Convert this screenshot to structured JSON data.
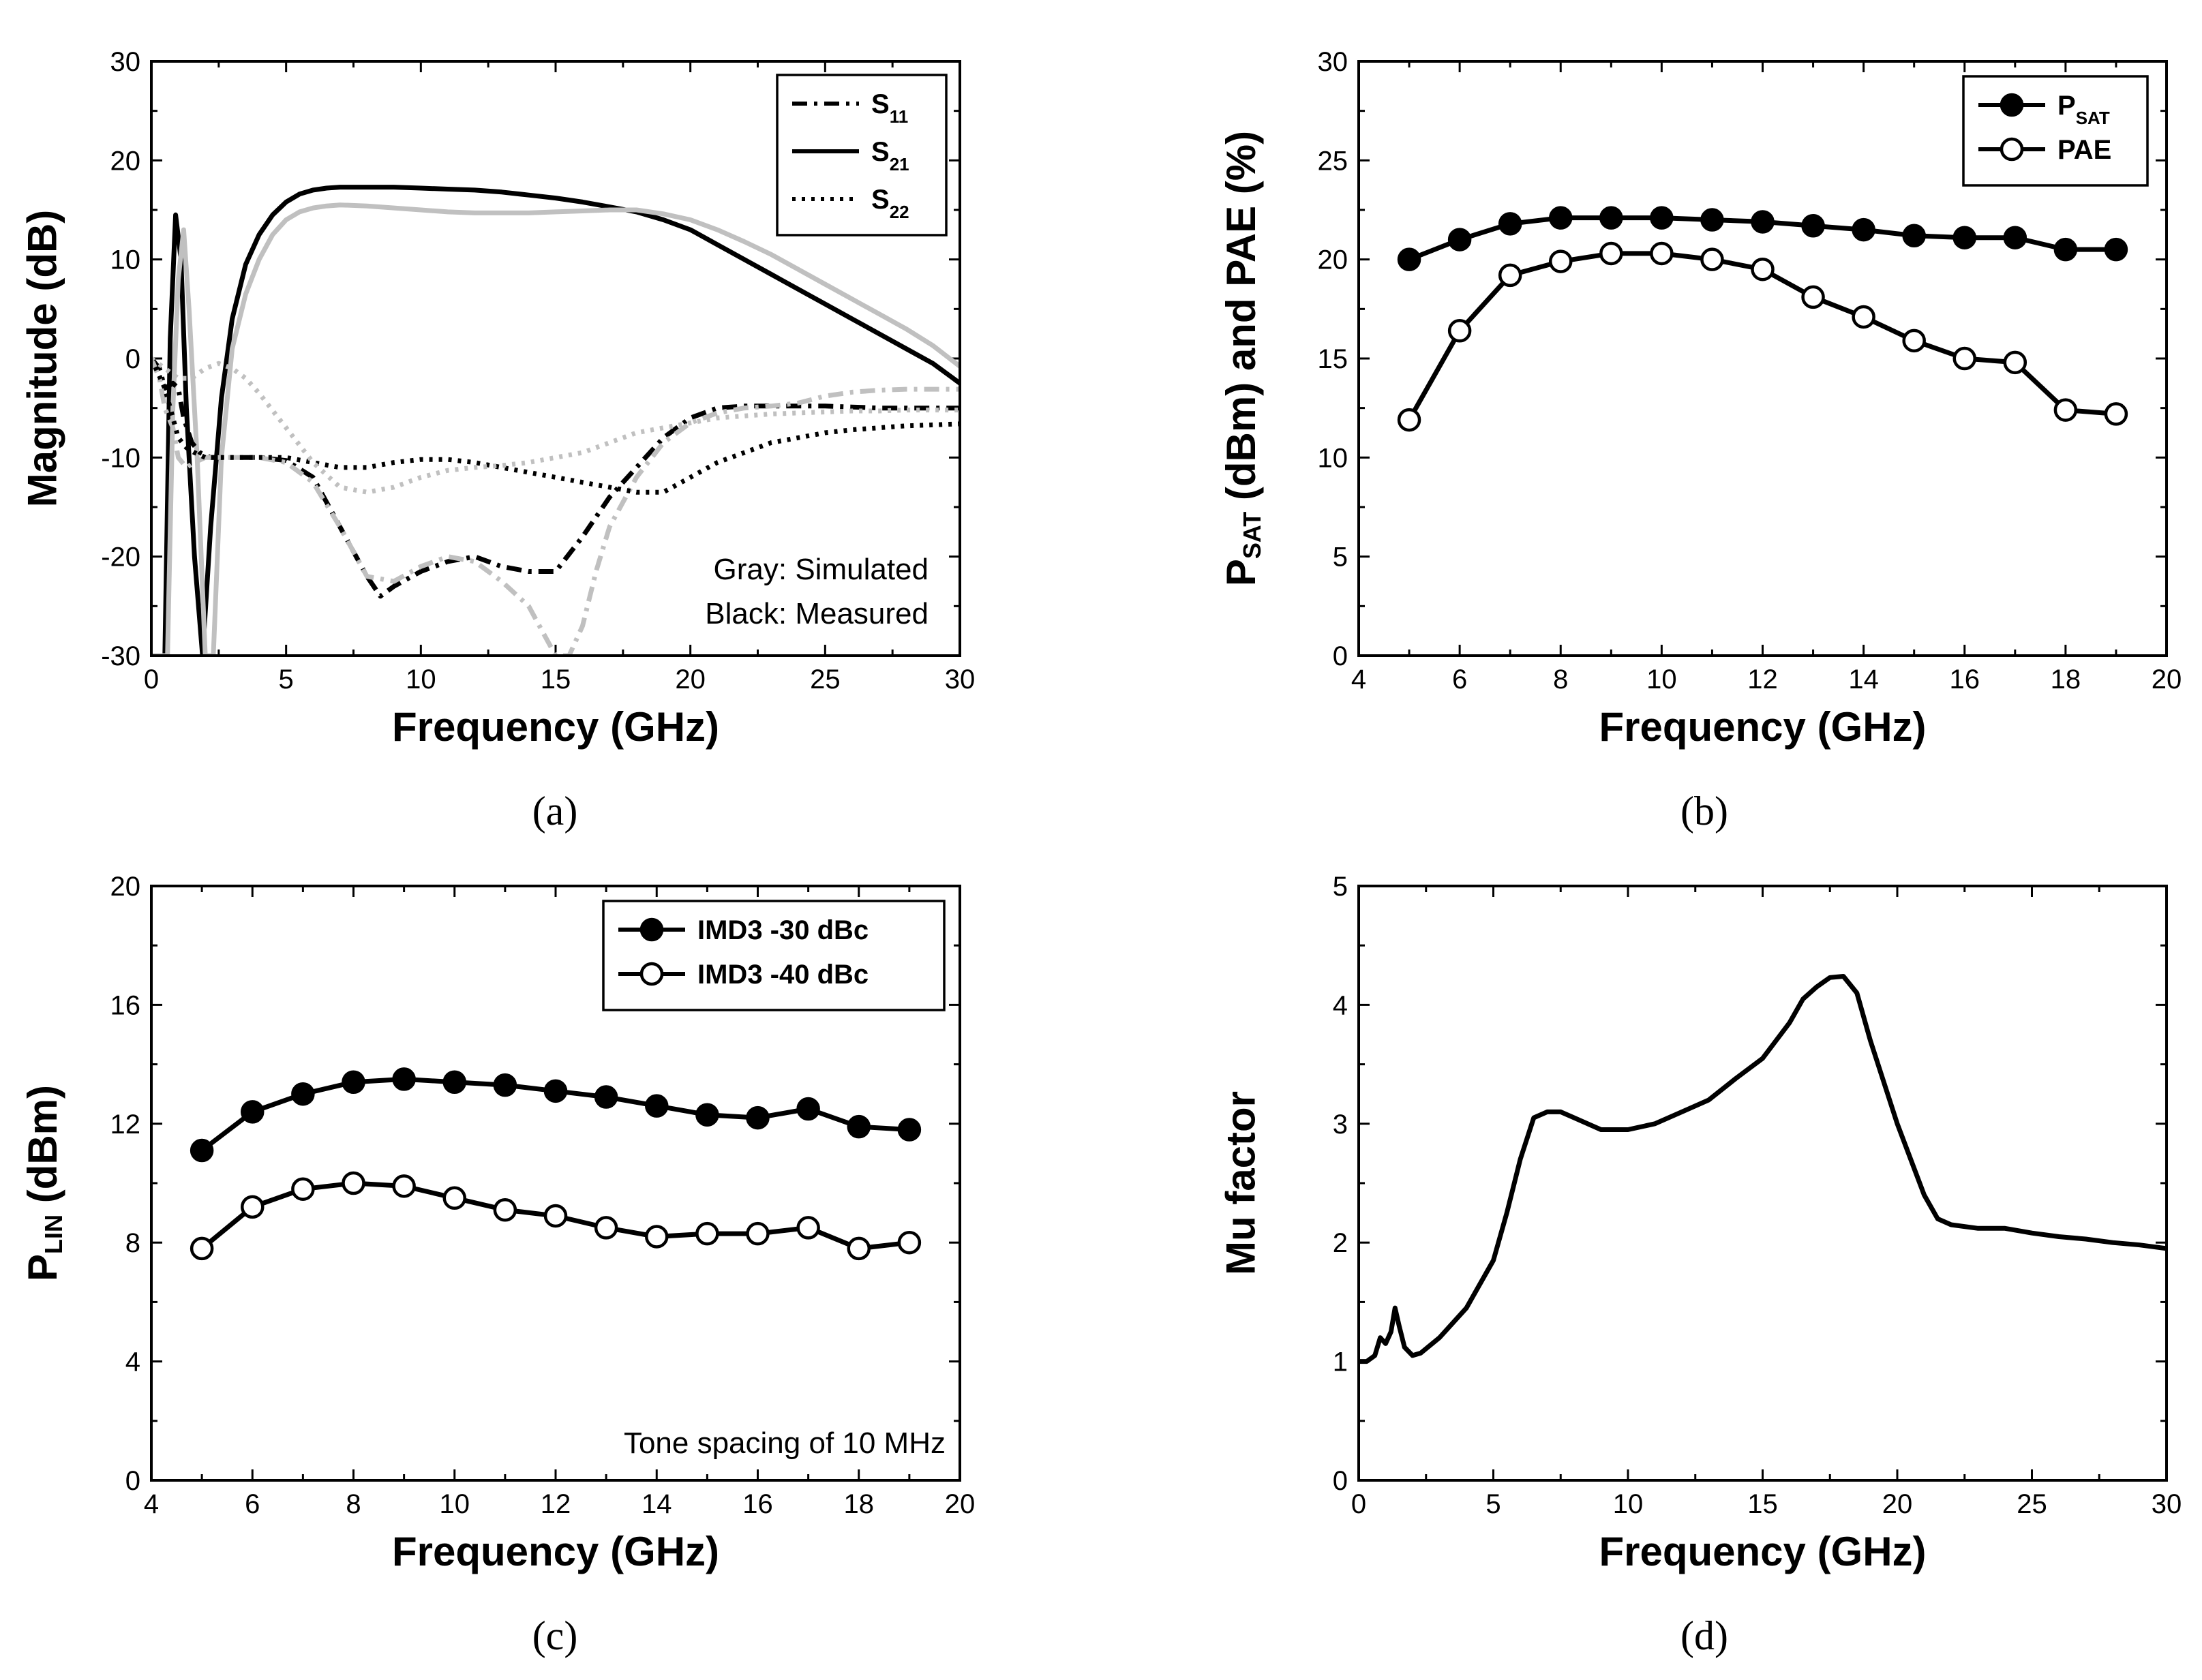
{
  "panels": [
    {
      "caption": "(a)",
      "chart_data": {
        "type": "line",
        "xlabel": "Frequency (GHz)",
        "ylabel": "Magnitude (dB)",
        "xlim": [
          0,
          30
        ],
        "ylim": [
          -30,
          30
        ],
        "xticks": [
          0,
          5,
          10,
          15,
          20,
          25,
          30
        ],
        "yticks": [
          -30,
          -20,
          -10,
          0,
          10,
          20,
          30
        ],
        "grid": false,
        "legend_placement": "top-right",
        "legend": [
          {
            "base": "S",
            "sub": "11",
            "style": "dashdot"
          },
          {
            "base": "S",
            "sub": "21",
            "style": "solid"
          },
          {
            "base": "S",
            "sub": "22",
            "style": "dotted"
          }
        ],
        "annotations": [
          "Gray: Simulated",
          "Black: Measured"
        ],
        "series": [
          {
            "param": "S21",
            "source": "measured",
            "color": "#000000",
            "dash": "solid",
            "x": [
              0,
              0.3,
              0.5,
              0.7,
              0.9,
              1.1,
              1.3,
              1.6,
              1.9,
              2.2,
              2.6,
              3.0,
              3.5,
              4.0,
              4.5,
              5.0,
              5.5,
              6.0,
              6.5,
              7.0,
              8,
              9,
              10,
              11,
              12,
              13,
              14,
              15,
              16,
              17,
              18,
              19,
              20,
              21,
              22,
              23,
              24,
              25,
              26,
              27,
              28,
              29,
              30
            ],
            "y": [
              -30,
              -30,
              -30,
              2,
              14.5,
              10,
              -5,
              -20,
              -30,
              -17,
              -4,
              4,
              9.5,
              12.5,
              14.5,
              15.8,
              16.6,
              17.0,
              17.2,
              17.3,
              17.3,
              17.3,
              17.2,
              17.1,
              17.0,
              16.8,
              16.5,
              16.2,
              15.8,
              15.3,
              14.8,
              14.0,
              13.0,
              11.5,
              10.0,
              8.5,
              7.0,
              5.5,
              4.0,
              2.5,
              1.0,
              -0.5,
              -2.5
            ]
          },
          {
            "param": "S21",
            "source": "simulated",
            "color": "#c0c0c0",
            "dash": "solid",
            "x": [
              0,
              0.3,
              0.6,
              0.8,
              1.0,
              1.2,
              1.4,
              1.7,
              2.0,
              2.3,
              2.6,
              3.0,
              3.5,
              4.0,
              4.5,
              5.0,
              5.5,
              6.0,
              6.5,
              7.0,
              8,
              9,
              10,
              11,
              12,
              13,
              14,
              15,
              16,
              17,
              18,
              19,
              20,
              21,
              22,
              23,
              24,
              25,
              26,
              27,
              28,
              29,
              30
            ],
            "y": [
              -30,
              -30,
              -30,
              -5,
              8,
              13,
              5,
              -10,
              -30,
              -30,
              -10,
              1,
              6.5,
              10,
              12.5,
              14,
              14.8,
              15.2,
              15.4,
              15.5,
              15.4,
              15.2,
              15.0,
              14.8,
              14.7,
              14.7,
              14.7,
              14.8,
              14.9,
              15.0,
              15.0,
              14.6,
              14.0,
              13.0,
              11.8,
              10.5,
              9.0,
              7.5,
              6.0,
              4.5,
              3.0,
              1.3,
              -0.8
            ]
          },
          {
            "param": "S11",
            "source": "measured",
            "color": "#000000",
            "dash": "dashdot",
            "x": [
              0,
              0.3,
              0.5,
              0.8,
              1.0,
              1.2,
              1.5,
              1.8,
              2.2,
              3,
              4,
              5,
              6,
              7,
              8,
              8.5,
              9,
              10,
              11,
              12,
              13,
              14,
              15,
              16,
              17,
              18,
              19,
              20,
              21,
              22,
              23,
              24,
              25,
              26,
              27,
              28,
              29,
              30
            ],
            "y": [
              0,
              -1,
              -3,
              -2.5,
              -3,
              -6,
              -8.5,
              -9.5,
              -10,
              -10,
              -10,
              -10.3,
              -12,
              -17,
              -22,
              -24,
              -23,
              -21.5,
              -20.5,
              -20,
              -21,
              -21.5,
              -21.5,
              -18,
              -14,
              -11,
              -8,
              -6,
              -5,
              -4.8,
              -4.8,
              -4.8,
              -4.8,
              -4.9,
              -5,
              -5,
              -5,
              -5
            ]
          },
          {
            "param": "S11",
            "source": "simulated",
            "color": "#c0c0c0",
            "dash": "dashdot",
            "x": [
              0,
              0.3,
              0.5,
              0.8,
              1.0,
              1.3,
              1.6,
              2.0,
              3,
              4,
              5,
              6,
              7,
              8,
              9,
              10,
              11,
              12,
              13,
              14,
              14.5,
              15,
              15.5,
              16,
              16.5,
              17,
              18,
              19,
              20,
              21,
              22,
              23,
              24,
              25,
              26,
              27,
              28,
              29,
              30
            ],
            "y": [
              0,
              -2,
              -5,
              -7,
              -10,
              -11,
              -10.5,
              -10,
              -10,
              -10,
              -10.5,
              -12.5,
              -17,
              -22,
              -22.5,
              -21,
              -20,
              -20.5,
              -22.5,
              -25,
              -27.5,
              -30,
              -30,
              -27,
              -21.5,
              -17,
              -12,
              -8.5,
              -6.5,
              -5.5,
              -5,
              -4.8,
              -4.5,
              -3.8,
              -3.4,
              -3.2,
              -3.1,
              -3.1,
              -3.1
            ]
          },
          {
            "param": "S22",
            "source": "measured",
            "color": "#000000",
            "dash": "dotted",
            "x": [
              0,
              0.5,
              0.8,
              1.0,
              1.3,
              1.6,
              2.0,
              2.5,
              3,
              4,
              5,
              6,
              7,
              8,
              9,
              10,
              11,
              12,
              13,
              14,
              15,
              16,
              17,
              18,
              19,
              20,
              21,
              22,
              23,
              24,
              25,
              26,
              27,
              28,
              29,
              30
            ],
            "y": [
              0,
              -3,
              -6,
              -8,
              -9,
              -9.5,
              -10,
              -10,
              -10,
              -10,
              -10,
              -10.5,
              -11,
              -11,
              -10.5,
              -10.2,
              -10.2,
              -10.5,
              -11,
              -11.5,
              -12,
              -12.5,
              -13,
              -13.5,
              -13.5,
              -12,
              -10.5,
              -9.5,
              -8.5,
              -8,
              -7.5,
              -7.2,
              -7,
              -6.8,
              -6.7,
              -6.6
            ]
          },
          {
            "param": "S22",
            "source": "simulated",
            "color": "#c0c0c0",
            "dash": "dotted",
            "x": [
              0,
              0.5,
              1.0,
              1.5,
              2.0,
              2.5,
              3.0,
              3.5,
              4,
              5,
              6,
              7,
              8,
              9,
              10,
              11,
              12,
              13,
              14,
              15,
              16,
              17,
              18,
              19,
              20,
              21,
              22,
              23,
              24,
              25,
              26,
              27,
              28,
              29,
              30
            ],
            "y": [
              0,
              -1,
              -2,
              -2,
              -1,
              -0.5,
              -1,
              -2,
              -3.5,
              -7,
              -10.5,
              -13,
              -13.5,
              -13,
              -12,
              -11.3,
              -11,
              -10.8,
              -10.5,
              -10,
              -9.5,
              -8.5,
              -7.5,
              -7,
              -6.5,
              -6,
              -5.8,
              -5.6,
              -5.5,
              -5.4,
              -5.3,
              -5.3,
              -5.2,
              -5.2,
              -5.2
            ]
          }
        ]
      }
    },
    {
      "caption": "(b)",
      "chart_data": {
        "type": "line",
        "xlabel": "Frequency (GHz)",
        "ylabel": {
          "parts": [
            {
              "t": "P"
            },
            {
              "t": "SAT",
              "sub": true
            },
            {
              "t": " (dBm) and PAE (%)"
            }
          ]
        },
        "xlim": [
          4,
          20
        ],
        "ylim": [
          0,
          30
        ],
        "xticks": [
          4,
          6,
          8,
          10,
          12,
          14,
          16,
          18,
          20
        ],
        "yticks": [
          0,
          5,
          10,
          15,
          20,
          25,
          30
        ],
        "grid": false,
        "legend_placement": "top-right",
        "legend": [
          {
            "base": "P",
            "sub": "SAT",
            "marker": "filled"
          },
          {
            "base": "PAE",
            "sub": "",
            "marker": "open"
          }
        ],
        "annotations": [],
        "series": [
          {
            "name": "PSAT",
            "marker": "filled",
            "color": "#000000",
            "dash": "solid",
            "x": [
              5,
              6,
              7,
              8,
              9,
              10,
              11,
              12,
              13,
              14,
              15,
              16,
              17,
              18,
              19
            ],
            "y": [
              20.0,
              21.0,
              21.8,
              22.1,
              22.1,
              22.1,
              22.0,
              21.9,
              21.7,
              21.5,
              21.2,
              21.1,
              21.1,
              20.5,
              20.5
            ]
          },
          {
            "name": "PAE",
            "marker": "open",
            "color": "#000000",
            "dash": "solid",
            "x": [
              5,
              6,
              7,
              8,
              9,
              10,
              11,
              12,
              13,
              14,
              15,
              16,
              17,
              18,
              19
            ],
            "y": [
              11.9,
              16.4,
              19.2,
              19.9,
              20.3,
              20.3,
              20.0,
              19.5,
              18.1,
              17.1,
              15.9,
              15.0,
              14.8,
              12.4,
              12.2
            ]
          }
        ]
      }
    },
    {
      "caption": "(c)",
      "chart_data": {
        "type": "line",
        "xlabel": "Frequency (GHz)",
        "ylabel": {
          "parts": [
            {
              "t": "P"
            },
            {
              "t": "LIN",
              "sub": true
            },
            {
              "t": " (dBm)"
            }
          ]
        },
        "xlim": [
          4,
          20
        ],
        "ylim": [
          0,
          20
        ],
        "xticks": [
          4,
          6,
          8,
          10,
          12,
          14,
          16,
          18,
          20
        ],
        "yticks": [
          0,
          4,
          8,
          12,
          16,
          20
        ],
        "grid": false,
        "legend_placement": "top-right",
        "legend": [
          {
            "base": "IMD3 -30 dBc",
            "sub": "",
            "marker": "filled"
          },
          {
            "base": "IMD3 -40 dBc",
            "sub": "",
            "marker": "open"
          }
        ],
        "annotations": [
          "Tone spacing of 10 MHz"
        ],
        "series": [
          {
            "name": "IMD3 -30 dBc",
            "marker": "filled",
            "color": "#000000",
            "dash": "solid",
            "x": [
              5,
              6,
              7,
              8,
              9,
              10,
              11,
              12,
              13,
              14,
              15,
              16,
              17,
              18,
              19
            ],
            "y": [
              11.1,
              12.4,
              13.0,
              13.4,
              13.5,
              13.4,
              13.3,
              13.1,
              12.9,
              12.6,
              12.3,
              12.2,
              12.5,
              11.9,
              11.8
            ]
          },
          {
            "name": "IMD3 -40 dBc",
            "marker": "open",
            "color": "#000000",
            "dash": "solid",
            "x": [
              5,
              6,
              7,
              8,
              9,
              10,
              11,
              12,
              13,
              14,
              15,
              16,
              17,
              18,
              19
            ],
            "y": [
              7.8,
              9.2,
              9.8,
              10.0,
              9.9,
              9.5,
              9.1,
              8.9,
              8.5,
              8.2,
              8.3,
              8.3,
              8.5,
              7.8,
              8.0
            ]
          }
        ]
      }
    },
    {
      "caption": "(d)",
      "chart_data": {
        "type": "line",
        "xlabel": "Frequency (GHz)",
        "ylabel": "Mu factor",
        "xlim": [
          0,
          30
        ],
        "ylim": [
          0,
          5
        ],
        "xticks": [
          0,
          5,
          10,
          15,
          20,
          25,
          30
        ],
        "yticks": [
          0,
          1,
          2,
          3,
          4,
          5
        ],
        "grid": false,
        "legend_placement": "none",
        "legend": [],
        "annotations": [],
        "series": [
          {
            "name": "Mu factor",
            "color": "#000000",
            "dash": "solid",
            "x": [
              0,
              0.3,
              0.6,
              0.8,
              1.0,
              1.2,
              1.35,
              1.5,
              1.7,
              2.0,
              2.3,
              3,
              4,
              5,
              5.5,
              6,
              6.5,
              7,
              7.5,
              8,
              9,
              10,
              11,
              12,
              13,
              14,
              15,
              15.5,
              16,
              16.5,
              17,
              17.5,
              18,
              18.5,
              19,
              20,
              21,
              21.5,
              22,
              23,
              24,
              25,
              26,
              27,
              28,
              29,
              30
            ],
            "y": [
              1.0,
              1.0,
              1.05,
              1.2,
              1.15,
              1.25,
              1.45,
              1.3,
              1.12,
              1.05,
              1.07,
              1.2,
              1.45,
              1.85,
              2.25,
              2.7,
              3.05,
              3.1,
              3.1,
              3.05,
              2.95,
              2.95,
              3.0,
              3.1,
              3.2,
              3.38,
              3.55,
              3.7,
              3.85,
              4.05,
              4.15,
              4.23,
              4.24,
              4.1,
              3.7,
              3.0,
              2.4,
              2.2,
              2.15,
              2.12,
              2.12,
              2.08,
              2.05,
              2.03,
              2.0,
              1.98,
              1.95
            ]
          }
        ]
      }
    }
  ]
}
